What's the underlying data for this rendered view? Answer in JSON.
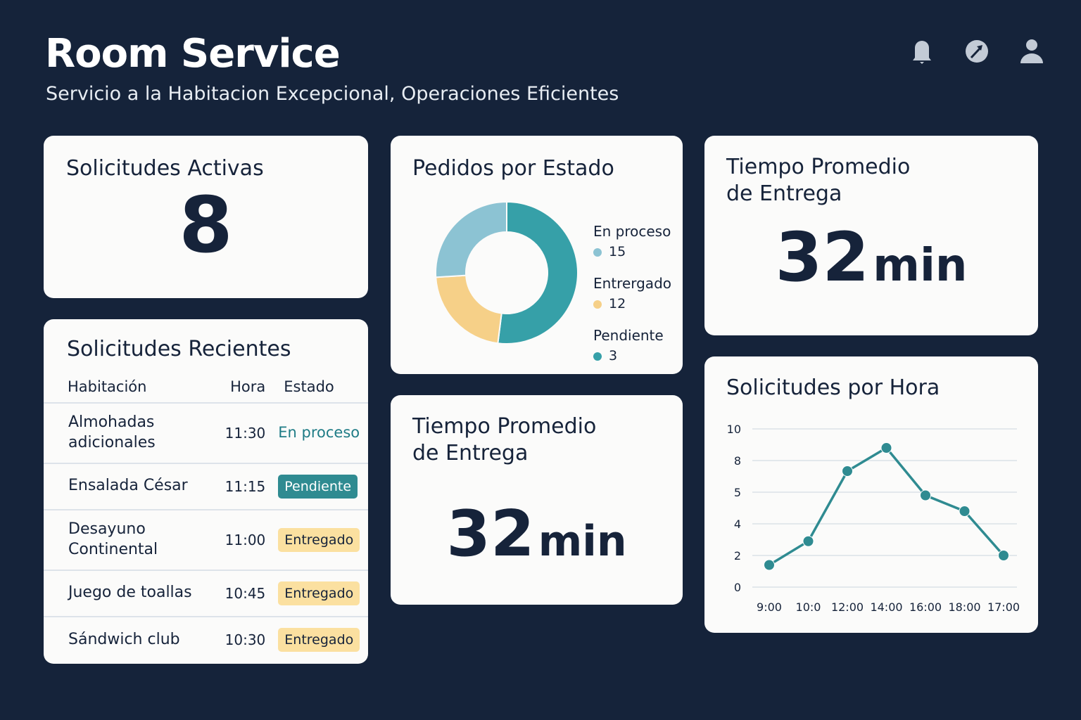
{
  "header": {
    "title": "Room Service",
    "subtitle": "Servicio a la Habitacion Excepcional, Operaciones Eficientes",
    "icons": [
      "bell-icon",
      "compass-icon",
      "user-icon"
    ]
  },
  "active": {
    "title": "Solicitudes Activas",
    "value": "8"
  },
  "status": {
    "title": "Pedidos por Estado",
    "items": [
      {
        "label": "En proceso",
        "value": "15",
        "color": "#8cc3d3"
      },
      {
        "label": "Entrergado",
        "value": "12",
        "color": "#f6d088"
      },
      {
        "label": "Pendiente",
        "value": "3",
        "color": "#36a0a8"
      }
    ],
    "slices": [
      {
        "value": 52,
        "color": "#36a0a8"
      },
      {
        "value": 22,
        "color": "#f6d088"
      },
      {
        "value": 26,
        "color": "#8cc3d3"
      }
    ]
  },
  "avg1": {
    "title_line1": "Tiempo Promedio",
    "title_line2": "de Entrega",
    "value": "32",
    "unit": "min"
  },
  "avg2": {
    "title_line1": "Tiempo Promedio",
    "title_line2": "de Entrega",
    "value": "32",
    "unit": "min"
  },
  "recent": {
    "title": "Solicitudes Recientes",
    "columns": [
      "Habitación",
      "Hora",
      "Estado"
    ],
    "rows": [
      {
        "item": "Almohadas adicionales",
        "time": "11:30",
        "status": "En proceso",
        "style": "text"
      },
      {
        "item": "Ensalada César",
        "time": "11:15",
        "status": "Pendiente",
        "style": "teal"
      },
      {
        "item": "Desayuno Continental",
        "time": "11:00",
        "status": "Entregado",
        "style": "yellow"
      },
      {
        "item": "Juego de toallas",
        "time": "10:45",
        "status": "Entregado",
        "style": "yellow"
      },
      {
        "item": "Sándwich club",
        "time": "10:30",
        "status": "Entregado",
        "style": "yellow"
      }
    ]
  },
  "chart_data": {
    "type": "line",
    "title": "Solicitudes por Hora",
    "categories": [
      "9:00",
      "10:0",
      "12:00",
      "14:00",
      "16:00",
      "18:00",
      "17:00"
    ],
    "values": [
      1.4,
      2.9,
      7,
      8.8,
      4.9,
      4.4,
      2
    ],
    "yticks": [
      "0",
      "2",
      "4",
      "5",
      "8",
      "10"
    ],
    "ylim": [
      0,
      10
    ],
    "grid": true,
    "color": "#2f8b91"
  }
}
